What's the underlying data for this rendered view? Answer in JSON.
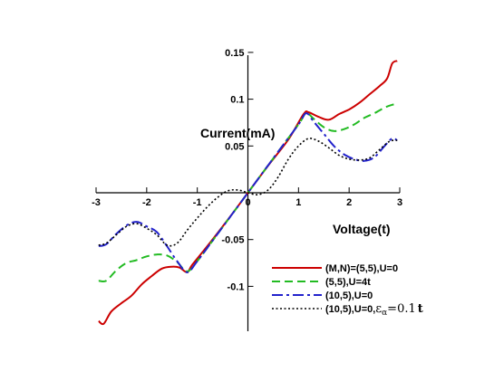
{
  "chart_data": {
    "type": "line",
    "xlabel": "Voltage(t)",
    "ylabel": "Current(mA)",
    "xlim": [
      -3,
      3
    ],
    "ylim": [
      -0.15,
      0.15
    ],
    "xticks": [
      -3,
      -2,
      -1,
      0,
      1,
      2,
      3
    ],
    "xtick_labels": [
      "-3",
      "-2",
      "-1",
      "0",
      "1",
      "2",
      "3"
    ],
    "yticks": [
      -0.1,
      -0.05,
      0.05,
      0.1,
      0.15
    ],
    "ytick_labels": [
      "-0.1",
      "-0.05",
      "0.05",
      "0.1",
      "0.15"
    ],
    "grid": false,
    "legend_position": "bottom-right",
    "series": [
      {
        "name": "(M,N)=(5,5),U=0",
        "color": "#cc0000",
        "style": "solid",
        "x": [
          -2.95,
          -2.85,
          -2.7,
          -2.5,
          -2.3,
          -2.1,
          -1.9,
          -1.7,
          -1.5,
          -1.35,
          -1.2,
          -1.1,
          -0.8,
          -0.4,
          0,
          0.4,
          0.8,
          1.1,
          1.2,
          1.4,
          1.6,
          1.8,
          2.0,
          2.2,
          2.4,
          2.6,
          2.75,
          2.85,
          2.95
        ],
        "y": [
          -0.137,
          -0.14,
          -0.127,
          -0.118,
          -0.11,
          -0.098,
          -0.089,
          -0.081,
          -0.079,
          -0.08,
          -0.085,
          -0.077,
          -0.057,
          -0.029,
          0,
          0.029,
          0.057,
          0.084,
          0.086,
          0.081,
          0.078,
          0.084,
          0.089,
          0.096,
          0.105,
          0.114,
          0.122,
          0.138,
          0.141
        ]
      },
      {
        "name": "(5,5),U=4t",
        "color": "#22bb22",
        "style": "dashed",
        "x": [
          -2.95,
          -2.8,
          -2.6,
          -2.4,
          -2.2,
          -2.0,
          -1.8,
          -1.6,
          -1.4,
          -1.2,
          -1.0,
          -0.6,
          0,
          0.6,
          1.0,
          1.15,
          1.3,
          1.5,
          1.7,
          1.9,
          2.1,
          2.3,
          2.5,
          2.7,
          2.85,
          2.95
        ],
        "y": [
          -0.094,
          -0.094,
          -0.083,
          -0.075,
          -0.072,
          -0.068,
          -0.066,
          -0.067,
          -0.074,
          -0.084,
          -0.073,
          -0.044,
          0,
          0.044,
          0.073,
          0.085,
          0.079,
          0.07,
          0.066,
          0.068,
          0.073,
          0.08,
          0.085,
          0.091,
          0.094,
          0.095
        ]
      },
      {
        "name": "(10,5),U=0",
        "color": "#2222cc",
        "style": "dashdot",
        "x": [
          -2.95,
          -2.8,
          -2.6,
          -2.4,
          -2.2,
          -2.0,
          -1.8,
          -1.6,
          -1.4,
          -1.2,
          -1.0,
          -0.6,
          0,
          0.6,
          1.0,
          1.15,
          1.3,
          1.5,
          1.7,
          1.9,
          2.1,
          2.3,
          2.5,
          2.7,
          2.85,
          2.95
        ],
        "y": [
          -0.057,
          -0.055,
          -0.044,
          -0.035,
          -0.031,
          -0.036,
          -0.042,
          -0.057,
          -0.073,
          -0.085,
          -0.073,
          -0.044,
          0,
          0.044,
          0.073,
          0.085,
          0.076,
          0.063,
          0.05,
          0.041,
          0.036,
          0.034,
          0.038,
          0.05,
          0.058,
          0.056
        ]
      },
      {
        "name": "(10,5),U=0,",
        "name_suffix_symbol": "ε",
        "name_suffix_subscript": "α",
        "name_suffix_rest": "=0.1",
        "name_suffix_bold": "t",
        "color": "#000000",
        "style": "dotted",
        "x": [
          -2.95,
          -2.8,
          -2.6,
          -2.4,
          -2.2,
          -2.0,
          -1.8,
          -1.6,
          -1.4,
          -1.2,
          -1.0,
          -0.8,
          -0.6,
          -0.4,
          -0.2,
          0,
          0.2,
          0.4,
          0.6,
          0.8,
          1.0,
          1.2,
          1.4,
          1.6,
          1.8,
          2.0,
          2.2,
          2.4,
          2.6,
          2.8,
          2.95
        ],
        "y": [
          -0.056,
          -0.054,
          -0.045,
          -0.036,
          -0.033,
          -0.038,
          -0.045,
          -0.056,
          -0.054,
          -0.04,
          -0.027,
          -0.015,
          -0.005,
          0.002,
          0.003,
          0,
          -0.002,
          0.003,
          0.017,
          0.036,
          0.05,
          0.058,
          0.055,
          0.048,
          0.04,
          0.036,
          0.035,
          0.037,
          0.046,
          0.055,
          0.056
        ]
      }
    ]
  }
}
